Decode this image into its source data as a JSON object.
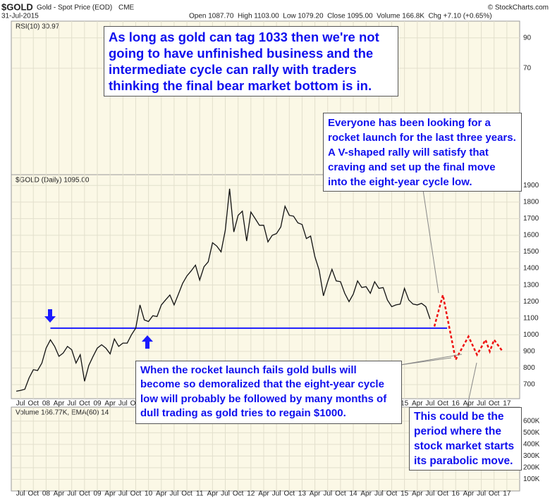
{
  "chart_data": {
    "type": "line",
    "header": {
      "symbol": "$GOLD",
      "name": "Gold - Spot Price (EOD)",
      "exchange": "CME",
      "date": "31-Jul-2015",
      "quote": "Open 1087.70  High 1103.00  Low 1079.20  Close 1095.00  Volume 166.8K  Chg +7.10 (+0.65%)",
      "credit": "© StockCharts.com"
    },
    "rsi_label": "RSI(10) 30.97",
    "price_label": "$GOLD (Daily) 1095.00",
    "volume_label": "Volume 166.77K, EMA(60) 14",
    "annotations": [
      "As long as gold can tag 1033 then we're not going to have unfinished business and the intermediate cycle can rally with traders thinking the final bear market bottom is in.",
      "Everyone has been looking for a rocket launch for the last three years. A V-shaped rally will satisfy that craving and set up the final move into the eight-year cycle low.",
      "When the rocket launch fails gold bulls will become so demoralized that the eight-year cycle low will probably be followed by many months of dull trading as gold tries to regain $1000.",
      "This could be the period where the stock market starts its parabolic move."
    ],
    "support_line": {
      "value": 1040,
      "x": [
        "2008-02",
        "2015-11"
      ],
      "color": "#1a1aff"
    },
    "xlim": [
      "2007-05",
      "2017-04"
    ],
    "xticks": [
      {
        "value": "2007-07",
        "label": "Jul"
      },
      {
        "value": "2007-10",
        "label": "Oct"
      },
      {
        "value": "2008-01",
        "label": "08"
      },
      {
        "value": "2008-04",
        "label": "Apr"
      },
      {
        "value": "2008-07",
        "label": "Jul"
      },
      {
        "value": "2008-10",
        "label": "Oct"
      },
      {
        "value": "2009-01",
        "label": "09"
      },
      {
        "value": "2009-04",
        "label": "Apr"
      },
      {
        "value": "2009-07",
        "label": "Jul"
      },
      {
        "value": "2009-10",
        "label": "Oct"
      },
      {
        "value": "2010-01",
        "label": "10"
      },
      {
        "value": "2010-04",
        "label": "Apr"
      },
      {
        "value": "2010-07",
        "label": "Jul"
      },
      {
        "value": "2010-10",
        "label": "Oct"
      },
      {
        "value": "2011-01",
        "label": "11"
      },
      {
        "value": "2011-04",
        "label": "Apr"
      },
      {
        "value": "2011-07",
        "label": "Jul"
      },
      {
        "value": "2011-10",
        "label": "Oct"
      },
      {
        "value": "2012-01",
        "label": "12"
      },
      {
        "value": "2012-04",
        "label": "Apr"
      },
      {
        "value": "2012-07",
        "label": "Jul"
      },
      {
        "value": "2012-10",
        "label": "Oct"
      },
      {
        "value": "2013-01",
        "label": "13"
      },
      {
        "value": "2013-04",
        "label": "Apr"
      },
      {
        "value": "2013-07",
        "label": "Jul"
      },
      {
        "value": "2013-10",
        "label": "Oct"
      },
      {
        "value": "2014-01",
        "label": "14"
      },
      {
        "value": "2014-04",
        "label": "Apr"
      },
      {
        "value": "2014-07",
        "label": "Jul"
      },
      {
        "value": "2014-10",
        "label": "Oct"
      },
      {
        "value": "2015-01",
        "label": "15"
      },
      {
        "value": "2015-04",
        "label": "Apr"
      },
      {
        "value": "2015-07",
        "label": "Jul"
      },
      {
        "value": "2015-10",
        "label": "Oct"
      },
      {
        "value": "2016-01",
        "label": "16"
      },
      {
        "value": "2016-04",
        "label": "Apr"
      },
      {
        "value": "2016-07",
        "label": "Jul"
      },
      {
        "value": "2016-10",
        "label": "Oct"
      },
      {
        "value": "2017-01",
        "label": "17"
      }
    ],
    "ylim": [
      615,
      1965
    ],
    "yticks": [
      700,
      800,
      900,
      1000,
      1100,
      1200,
      1300,
      1400,
      1500,
      1600,
      1700,
      1800,
      1900
    ],
    "rsi_ylim": [
      0,
      101
    ],
    "rsi_yticks": [
      90,
      70
    ],
    "volume_ylim": [
      0,
      720000
    ],
    "volume_yticks": [
      {
        "value": 600000,
        "label": "600K"
      },
      {
        "value": 500000,
        "label": "500K"
      },
      {
        "value": 400000,
        "label": "400K"
      },
      {
        "value": 300000,
        "label": "300K"
      },
      {
        "value": 200000,
        "label": "200K"
      },
      {
        "value": 100000,
        "label": "100K"
      }
    ],
    "grid": true,
    "series": [
      {
        "color": "#111111",
        "x": [
          "2007-06",
          "2007-07",
          "2007-08",
          "2007-09",
          "2007-10",
          "2007-11",
          "2007-12",
          "2008-01",
          "2008-02",
          "2008-03",
          "2008-04",
          "2008-05",
          "2008-06",
          "2008-07",
          "2008-08",
          "2008-09",
          "2008-10",
          "2008-11",
          "2008-12",
          "2009-01",
          "2009-02",
          "2009-03",
          "2009-04",
          "2009-05",
          "2009-06",
          "2009-07",
          "2009-08",
          "2009-09",
          "2009-10",
          "2009-11",
          "2009-12",
          "2010-01",
          "2010-02",
          "2010-03",
          "2010-04",
          "2010-05",
          "2010-06",
          "2010-07",
          "2010-08",
          "2010-09",
          "2010-10",
          "2010-11",
          "2010-12",
          "2011-01",
          "2011-02",
          "2011-03",
          "2011-04",
          "2011-05",
          "2011-06",
          "2011-07",
          "2011-08",
          "2011-09",
          "2011-10",
          "2011-11",
          "2011-12",
          "2012-01",
          "2012-02",
          "2012-03",
          "2012-04",
          "2012-05",
          "2012-06",
          "2012-07",
          "2012-08",
          "2012-09",
          "2012-10",
          "2012-11",
          "2012-12",
          "2013-01",
          "2013-02",
          "2013-03",
          "2013-04",
          "2013-05",
          "2013-06",
          "2013-07",
          "2013-08",
          "2013-09",
          "2013-10",
          "2013-11",
          "2013-12",
          "2014-01",
          "2014-02",
          "2014-03",
          "2014-04",
          "2014-05",
          "2014-06",
          "2014-07",
          "2014-08",
          "2014-09",
          "2014-10",
          "2014-11",
          "2014-12",
          "2015-01",
          "2015-02",
          "2015-03",
          "2015-04",
          "2015-05",
          "2015-06",
          "2015-07"
        ],
        "values": [
          660,
          665,
          672,
          740,
          790,
          785,
          830,
          920,
          970,
          930,
          870,
          890,
          930,
          910,
          830,
          880,
          720,
          815,
          870,
          920,
          940,
          920,
          885,
          975,
          930,
          950,
          950,
          1000,
          1040,
          1180,
          1090,
          1080,
          1115,
          1110,
          1180,
          1210,
          1240,
          1180,
          1245,
          1310,
          1355,
          1385,
          1420,
          1330,
          1410,
          1440,
          1555,
          1535,
          1500,
          1630,
          1880,
          1620,
          1720,
          1745,
          1565,
          1740,
          1700,
          1660,
          1660,
          1560,
          1600,
          1610,
          1650,
          1775,
          1720,
          1715,
          1675,
          1665,
          1580,
          1595,
          1470,
          1390,
          1235,
          1320,
          1395,
          1325,
          1320,
          1250,
          1200,
          1245,
          1325,
          1285,
          1290,
          1250,
          1320,
          1280,
          1285,
          1210,
          1170,
          1180,
          1185,
          1280,
          1210,
          1185,
          1180,
          1190,
          1170,
          1095
        ]
      },
      {
        "color": "#ee1111",
        "dashed": true,
        "x": [
          "2015-08",
          "2015-10",
          "2016-01",
          "2016-04",
          "2016-06",
          "2016-08",
          "2016-09",
          "2016-10",
          "2016-12"
        ],
        "values": [
          1050,
          1240,
          850,
          990,
          880,
          970,
          900,
          970,
          900
        ]
      }
    ]
  }
}
